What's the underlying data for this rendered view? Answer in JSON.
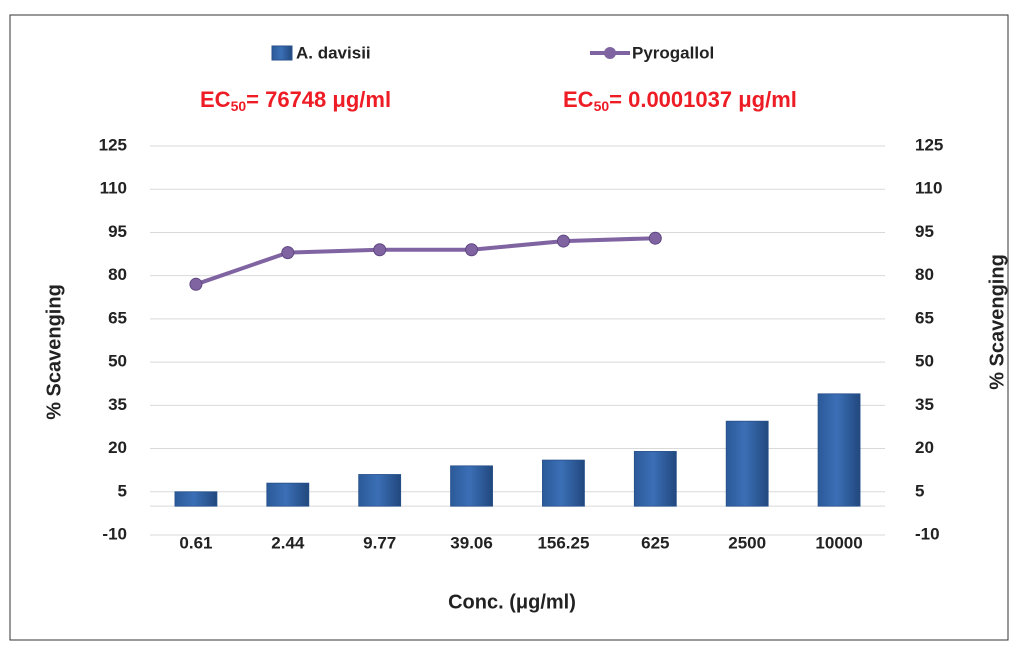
{
  "chart_data": {
    "type": "bar_line",
    "categories": [
      "0.61",
      "2.44",
      "9.77",
      "39.06",
      "156.25",
      "625",
      "2500",
      "10000"
    ],
    "series": [
      {
        "name": "A. davisii",
        "type": "bar",
        "color": "#3b6fb6",
        "values": [
          5,
          8,
          11,
          14,
          16,
          19,
          29.5,
          39
        ]
      },
      {
        "name": "Pyrogallol",
        "type": "line",
        "color": "#8064a2",
        "axis": "y2",
        "values": [
          77,
          88,
          89,
          89,
          92,
          93,
          null,
          null
        ]
      }
    ],
    "annotations": [
      {
        "prefix": "EC",
        "sub": "50",
        "text": "= 76748  μg/ml"
      },
      {
        "prefix": "EC",
        "sub": "50",
        "text": "= 0.0001037  μg/ml"
      }
    ],
    "xlabel": "Conc. (μg/ml)",
    "ylabel": "% Scavenging",
    "y2label": "% Scavenging",
    "ylim": [
      -10,
      125
    ],
    "yticks": [
      -10,
      5,
      20,
      35,
      50,
      65,
      80,
      95,
      110,
      125
    ],
    "y2lim": [
      -10,
      125
    ],
    "y2ticks": [
      -10,
      5,
      20,
      35,
      50,
      65,
      80,
      95,
      110,
      125
    ],
    "grid": true,
    "legend": "top"
  }
}
